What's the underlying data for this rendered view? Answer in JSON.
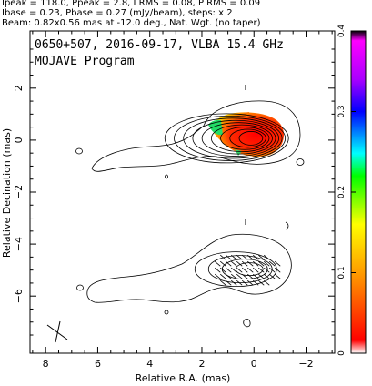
{
  "header": {
    "line1": "Ipeak = 118.0, Ppeak = 2.8, I RMS = 0.08, P RMS = 0.09",
    "line2": "Ibase = 0.23, Pbase = 0.27 (mJy/beam), steps: x 2",
    "line3": "Beam: 0.82x0.56 mas at -12.0 deg., Nat. Wgt. (no taper)"
  },
  "chart_data": {
    "type": "contour",
    "title": "0650+507, 2016-09-17, VLBA 15.4 GHz",
    "subtitle": "MOJAVE Program",
    "xlabel": "Relative R.A. (mas)",
    "ylabel": "Relative Decination (mas)",
    "xlim": [
      8.6,
      -3.1
    ],
    "ylim": [
      -8.2,
      4.2
    ],
    "x_ticks": [
      8,
      6,
      4,
      2,
      0,
      -2
    ],
    "x_tick_labels": [
      "8",
      "6",
      "4",
      "2",
      "0",
      "−2"
    ],
    "y_ticks": [
      2,
      0,
      -2,
      -4,
      -6
    ],
    "y_tick_labels": [
      "2",
      "0",
      "−2",
      "−4",
      "−6"
    ],
    "colorbar": {
      "ticks": [
        0,
        0.1,
        0.2,
        0.3,
        0.4
      ],
      "tick_labels": [
        "0",
        "0.1",
        "0.2",
        "0.3",
        "0.4"
      ],
      "colors": [
        "#ffffff",
        "#ff0000",
        "#ff8800",
        "#ffff00",
        "#00ff00",
        "#00ffff",
        "#0000ff",
        "#aa00ff",
        "#ff00ff",
        "#000000"
      ]
    },
    "upper_panel": {
      "description": "Stokes I contours with fractional polarization color overlay",
      "core": [
        0,
        0
      ],
      "contour_levels_count": 9,
      "color_region_center": [
        0.9,
        0.1
      ]
    },
    "lower_panel": {
      "description": "Stokes I contours with polarization vectors",
      "core": [
        0,
        -5
      ],
      "contour_levels_count": 4
    },
    "beam": {
      "major": 0.82,
      "minor": 0.56,
      "pa": -12.0,
      "position": "bottom-left"
    }
  }
}
